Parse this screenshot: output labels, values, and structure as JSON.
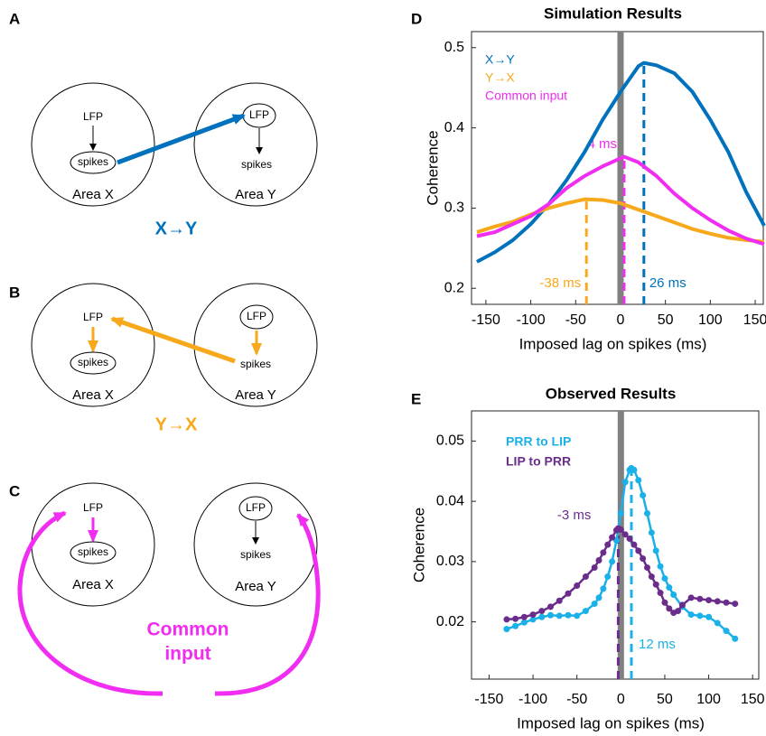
{
  "diagrams": [
    {
      "letter": "A",
      "caption": [
        "X→Y"
      ],
      "caption_color": "#0072bd",
      "left": {
        "lfp": "LFP",
        "spikes": "spikes",
        "area": "Area X"
      },
      "right": {
        "lfp": "LFP",
        "spikes": "spikes",
        "area": "Area Y"
      }
    },
    {
      "letter": "B",
      "caption": [
        "Y→X"
      ],
      "caption_color": "#f7a81b",
      "left": {
        "lfp": "LFP",
        "spikes": "spikes",
        "area": "Area X"
      },
      "right": {
        "lfp": "LFP",
        "spikes": "spikes",
        "area": "Area Y"
      }
    },
    {
      "letter": "C",
      "caption": [
        "Common",
        "input"
      ],
      "caption_color": "#f02df0",
      "left": {
        "lfp": "LFP",
        "spikes": "spikes",
        "area": "Area X"
      },
      "right": {
        "lfp": "LFP",
        "spikes": "spikes",
        "area": "Area Y"
      }
    }
  ],
  "chart_data": [
    {
      "type": "line",
      "panel": "D",
      "title": "Simulation Results",
      "x_label": "Imposed lag on spikes (ms)",
      "y_label": "Coherence",
      "xlim": [
        -166,
        159
      ],
      "ylim": [
        0.18,
        0.52
      ],
      "xticks": [
        -150,
        -100,
        -50,
        0,
        50,
        100,
        150
      ],
      "yticks": [
        0.2,
        0.3,
        0.4,
        0.5
      ],
      "markers": false,
      "vline": {
        "x": 0,
        "color": "#808080"
      },
      "series": [
        {
          "name": "X→Y",
          "color": "#0072bd",
          "x": [
            -160,
            -140,
            -120,
            -100,
            -80,
            -60,
            -40,
            -20,
            0,
            20,
            26,
            40,
            60,
            80,
            100,
            120,
            140,
            160
          ],
          "values": [
            0.233,
            0.245,
            0.26,
            0.28,
            0.305,
            0.335,
            0.37,
            0.41,
            0.445,
            0.477,
            0.481,
            0.478,
            0.468,
            0.445,
            0.41,
            0.37,
            0.32,
            0.278
          ]
        },
        {
          "name": "Y→X",
          "color": "#f7a81b",
          "x": [
            -160,
            -140,
            -120,
            -100,
            -80,
            -60,
            -40,
            -20,
            0,
            20,
            40,
            60,
            80,
            100,
            120,
            140,
            160
          ],
          "values": [
            0.27,
            0.277,
            0.283,
            0.292,
            0.3,
            0.306,
            0.311,
            0.31,
            0.306,
            0.298,
            0.29,
            0.282,
            0.274,
            0.268,
            0.263,
            0.26,
            0.258
          ]
        },
        {
          "name": "Common input",
          "color": "#f02df0",
          "x": [
            -160,
            -140,
            -120,
            -100,
            -80,
            -60,
            -40,
            -20,
            0,
            4,
            20,
            40,
            60,
            80,
            100,
            120,
            140,
            160
          ],
          "values": [
            0.265,
            0.27,
            0.28,
            0.29,
            0.305,
            0.325,
            0.34,
            0.352,
            0.362,
            0.364,
            0.357,
            0.34,
            0.318,
            0.3,
            0.285,
            0.272,
            0.262,
            0.255
          ]
        }
      ],
      "annotations": [
        {
          "x": 26,
          "text": "26 ms",
          "color": "#0072bd"
        },
        {
          "x": -38,
          "text": "-38 ms",
          "color": "#f7a81b"
        },
        {
          "x": 4,
          "text": "4 ms",
          "color": "#f02df0"
        }
      ]
    },
    {
      "type": "line",
      "panel": "E",
      "title": "Observed Results",
      "x_label": "Imposed lag on spikes (ms)",
      "y_label": "Coherence",
      "xlim": [
        -170,
        157
      ],
      "ylim": [
        0.0105,
        0.055
      ],
      "xticks": [
        -150,
        -100,
        -50,
        0,
        50,
        100,
        150
      ],
      "yticks": [
        0.02,
        0.03,
        0.04,
        0.05
      ],
      "markers": true,
      "legend_bold": true,
      "vline": {
        "x": 0,
        "color": "#808080"
      },
      "series": [
        {
          "name": "PRR to LIP",
          "color": "#1ab0e8",
          "x": [
            -130,
            -120,
            -110,
            -100,
            -90,
            -80,
            -70,
            -60,
            -50,
            -40,
            -30,
            -25,
            -20,
            -15,
            -10,
            -5,
            0,
            5,
            10,
            12,
            15,
            20,
            25,
            30,
            35,
            40,
            45,
            50,
            55,
            60,
            70,
            80,
            90,
            100,
            110,
            120,
            130
          ],
          "values": [
            0.0188,
            0.0193,
            0.0199,
            0.0204,
            0.0208,
            0.0211,
            0.021,
            0.0211,
            0.021,
            0.0218,
            0.023,
            0.024,
            0.0255,
            0.0275,
            0.03,
            0.0335,
            0.038,
            0.0432,
            0.0452,
            0.0455,
            0.0452,
            0.0435,
            0.041,
            0.038,
            0.0348,
            0.0318,
            0.0292,
            0.0272,
            0.0257,
            0.0245,
            0.0225,
            0.0212,
            0.021,
            0.0208,
            0.0198,
            0.0185,
            0.0172
          ]
        },
        {
          "name": "LIP to PRR",
          "color": "#6b2d8c",
          "x": [
            -130,
            -120,
            -110,
            -100,
            -90,
            -80,
            -70,
            -60,
            -50,
            -40,
            -30,
            -25,
            -20,
            -15,
            -10,
            -5,
            -3,
            0,
            5,
            10,
            15,
            20,
            25,
            30,
            35,
            40,
            45,
            50,
            55,
            60,
            65,
            70,
            80,
            90,
            100,
            110,
            120,
            130
          ],
          "values": [
            0.0204,
            0.0205,
            0.0208,
            0.0212,
            0.0218,
            0.0225,
            0.0235,
            0.0247,
            0.026,
            0.0275,
            0.029,
            0.0302,
            0.0315,
            0.0328,
            0.034,
            0.0352,
            0.0355,
            0.0353,
            0.0345,
            0.0338,
            0.0328,
            0.0318,
            0.0305,
            0.029,
            0.0275,
            0.0262,
            0.0248,
            0.0232,
            0.0222,
            0.0215,
            0.0218,
            0.0228,
            0.024,
            0.0238,
            0.0236,
            0.0234,
            0.0232,
            0.023
          ]
        }
      ],
      "annotations": [
        {
          "x": 12,
          "text": "12 ms",
          "color": "#1ab0e8"
        },
        {
          "x": -3,
          "text": "-3 ms",
          "color": "#6b2d8c"
        }
      ]
    }
  ]
}
